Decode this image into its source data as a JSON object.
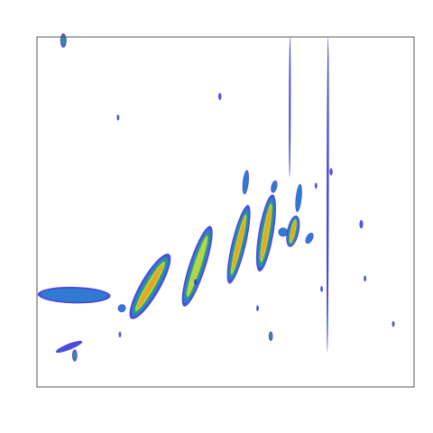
{
  "chart_data": {
    "type": "heatmap",
    "title": "",
    "xlabel": "",
    "ylabel": "",
    "xlim": [
      0,
      100
    ],
    "ylim": [
      0,
      100
    ],
    "axes_visible": false,
    "grid": false,
    "legend": "none",
    "colors": {
      "low": "#2b2bd6",
      "mid_low": "#2f7fd0",
      "mid": "#2aa36a",
      "mid_high": "#bcd84a",
      "high": "#f0a020",
      "frame": "#555555"
    },
    "series": [
      {
        "type": "streaks",
        "items": [
          {
            "x1": 0.2,
            "y1": 26.5,
            "x2": 19.5,
            "y2": 26.0,
            "level": 0.45,
            "w": 2.2
          },
          {
            "x1": 25.0,
            "y1": 19.5,
            "x2": 35.0,
            "y2": 38.0,
            "level": 0.9,
            "w": 2.6
          },
          {
            "x1": 39.0,
            "y1": 23.0,
            "x2": 46.0,
            "y2": 46.0,
            "level": 0.85,
            "w": 2.2
          },
          {
            "x1": 51.0,
            "y1": 29.5,
            "x2": 56.0,
            "y2": 52.0,
            "level": 0.9,
            "w": 1.9
          },
          {
            "x1": 59.0,
            "y1": 33.0,
            "x2": 62.5,
            "y2": 55.0,
            "level": 1.0,
            "w": 2.0
          },
          {
            "x1": 67.0,
            "y1": 40.0,
            "x2": 68.8,
            "y2": 49.0,
            "level": 0.95,
            "w": 1.6
          },
          {
            "x1": 55.0,
            "y1": 55.0,
            "x2": 55.7,
            "y2": 62.0,
            "level": 0.35,
            "w": 0.8
          },
          {
            "x1": 62.5,
            "y1": 55.5,
            "x2": 63.3,
            "y2": 59.0,
            "level": 0.4,
            "w": 0.8
          },
          {
            "x1": 69.0,
            "y1": 50.0,
            "x2": 69.8,
            "y2": 58.0,
            "level": 0.35,
            "w": 0.8
          },
          {
            "x1": 64.0,
            "y1": 44.0,
            "x2": 66.5,
            "y2": 44.5,
            "level": 0.5,
            "w": 1.2
          },
          {
            "x1": 71.5,
            "y1": 41.0,
            "x2": 73.0,
            "y2": 44.0,
            "level": 0.3,
            "w": 0.9
          },
          {
            "x1": 22.0,
            "y1": 23.5,
            "x2": 23.0,
            "y2": 21.5,
            "level": 0.4,
            "w": 1.1
          },
          {
            "x1": 5.0,
            "y1": 10.0,
            "x2": 12.0,
            "y2": 13.0,
            "level": 0.2,
            "w": 0.8
          },
          {
            "x1": 77.0,
            "y1": 10.0,
            "x2": 77.2,
            "y2": 100.0,
            "level": 0.12,
            "w": 0.3
          },
          {
            "x1": 67.0,
            "y1": 60.0,
            "x2": 67.1,
            "y2": 100.0,
            "level": 0.08,
            "w": 0.25
          }
        ]
      },
      {
        "type": "blobs",
        "items": [
          {
            "x": 7.0,
            "y": 99.0,
            "level": 0.6,
            "r": 1.2
          },
          {
            "x": 10.0,
            "y": 9.0,
            "level": 0.5,
            "r": 1.0
          },
          {
            "x": 21.5,
            "y": 77.0,
            "level": 0.3,
            "r": 0.5
          },
          {
            "x": 48.5,
            "y": 83.0,
            "level": 0.3,
            "r": 0.6
          },
          {
            "x": 62.0,
            "y": 14.5,
            "level": 0.5,
            "r": 0.8
          },
          {
            "x": 86.0,
            "y": 46.5,
            "level": 0.35,
            "r": 0.7
          },
          {
            "x": 87.0,
            "y": 31.0,
            "level": 0.25,
            "r": 0.5
          },
          {
            "x": 94.5,
            "y": 18.0,
            "level": 0.25,
            "r": 0.5
          },
          {
            "x": 75.5,
            "y": 28.0,
            "level": 0.2,
            "r": 0.5
          },
          {
            "x": 22.0,
            "y": 15.0,
            "level": 0.2,
            "r": 0.5
          },
          {
            "x": 42.0,
            "y": 30.0,
            "level": 0.25,
            "r": 0.5
          },
          {
            "x": 58.5,
            "y": 22.5,
            "level": 0.2,
            "r": 0.5
          },
          {
            "x": 78.0,
            "y": 61.5,
            "level": 0.3,
            "r": 0.6
          },
          {
            "x": 74.0,
            "y": 57.5,
            "level": 0.2,
            "r": 0.5
          }
        ]
      }
    ]
  }
}
